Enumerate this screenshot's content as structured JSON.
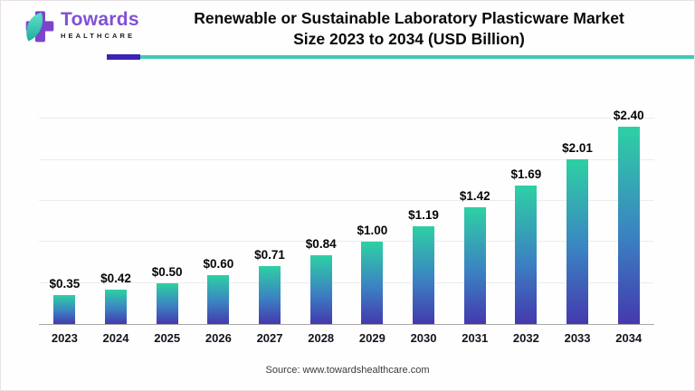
{
  "header": {
    "logo": {
      "brand": "Towards",
      "sub": "HEALTHCARE"
    },
    "title_line1": "Renewable or Sustainable Laboratory Plasticware Market",
    "title_line2": "Size 2023 to 2034 (USD Billion)",
    "underline_purple_color": "#3d23b3",
    "underline_teal_color": "#40c9b4"
  },
  "chart_data": {
    "type": "bar",
    "title": "Renewable or Sustainable Laboratory Plasticware Market Size 2023 to 2034 (USD Billion)",
    "categories": [
      "2023",
      "2024",
      "2025",
      "2026",
      "2027",
      "2028",
      "2029",
      "2030",
      "2031",
      "2032",
      "2033",
      "2034"
    ],
    "values": [
      0.35,
      0.42,
      0.5,
      0.6,
      0.71,
      0.84,
      1.0,
      1.19,
      1.42,
      1.69,
      2.01,
      2.4
    ],
    "value_labels": [
      "$0.35",
      "$0.42",
      "$0.50",
      "$0.60",
      "$0.71",
      "$0.84",
      "$1.00",
      "$1.19",
      "$1.42",
      "$1.69",
      "$2.01",
      "$2.40"
    ],
    "xlabel": "",
    "ylabel": "",
    "ylim": [
      0,
      2.7
    ],
    "gridlines": [
      0.5,
      1.0,
      1.5,
      2.0,
      2.5
    ],
    "grid": true,
    "legend": false,
    "bar_gradient": {
      "top": "#2ed0a4",
      "mid": "#3b82c2",
      "bottom": "#4439ae"
    },
    "axis_color": "#a8a8a8",
    "gridline_color": "#ececec"
  },
  "footer": {
    "source": "Source: www.towardshealthcare.com"
  },
  "icons": {
    "logo_cross_color": "#7c44cb",
    "logo_leaf_top": "#5fe0cb",
    "logo_leaf_bottom": "#1fae9e"
  }
}
